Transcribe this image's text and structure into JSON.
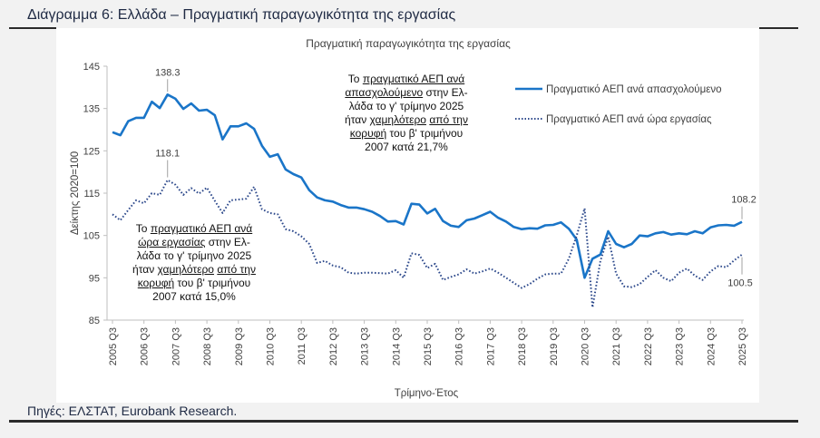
{
  "figure_title": "Διάγραμμα 6: Ελλάδα – Πραγματική παραγωγικότητα της εργασίας",
  "source_note": "Πηγές: ΕΛΣΤΑΤ, Eurobank Research.",
  "annotations": {
    "employee": [
      "Το ",
      "πραγματικό ΑΕΠ ανά",
      " ",
      "απασχολούμενο",
      " στην Ελ-",
      "λάδα το γ' τρίμηνο 2025",
      "ήταν ",
      "χαμηλότερο",
      " ",
      "από την",
      " ",
      "κορυφή",
      " του β' τριμήνου",
      "2007 κατά 21,7%"
    ],
    "hour": [
      "Το ",
      "πραγματικό ΑΕΠ ανά",
      " ",
      "ώρα εργασίας",
      " στην Ελ-",
      "λάδα το γ' τρίμηνο 2025",
      "ήταν ",
      "χαμηλότερο",
      " ",
      "από την",
      " ",
      "κορυφή",
      " του β' τριμήνου",
      "2007 κατά 15,0%"
    ]
  },
  "colors": {
    "employee": "#1a75c8",
    "hour": "#2e4a8c",
    "axis": "#bfbfbf",
    "text": "#404040"
  },
  "chart_data": {
    "type": "line",
    "title": "Πραγματική παραγωγικότητα της εργασίας",
    "xlabel": "Τρίμηνο-Έτος",
    "ylabel": "Δείκτης 2020=100",
    "ylim": [
      85,
      145
    ],
    "yticks": [
      85,
      95,
      105,
      115,
      125,
      135,
      145
    ],
    "xtick_labels": [
      "2005 Q3",
      "2006 Q3",
      "2007 Q3",
      "2008 Q3",
      "2009 Q3",
      "2010 Q3",
      "2011 Q3",
      "2012 Q3",
      "2013 Q3",
      "2014 Q3",
      "2015 Q3",
      "2016 Q3",
      "2017 Q3",
      "2018 Q3",
      "2019 Q3",
      "2020 Q3",
      "2021 Q3",
      "2022 Q3",
      "2023 Q3",
      "2024 Q3",
      "2025 Q3"
    ],
    "legend_position": "top-right",
    "series": [
      {
        "name": "Πραγματικό ΑΕΠ ανά απασχολούμενο",
        "style": "solid",
        "values": [
          129.4,
          128.7,
          132.0,
          132.8,
          132.8,
          136.6,
          135.1,
          138.3,
          137.3,
          134.9,
          136.2,
          134.5,
          134.7,
          133.4,
          127.7,
          130.8,
          130.8,
          131.5,
          130.2,
          126.2,
          123.6,
          124.2,
          120.6,
          119.5,
          118.7,
          115.7,
          114.0,
          113.3,
          113.0,
          112.2,
          111.6,
          111.6,
          111.2,
          110.6,
          109.6,
          108.3,
          108.4,
          107.6,
          112.5,
          112.3,
          110.2,
          111.3,
          108.4,
          107.3,
          107.0,
          108.6,
          109.0,
          109.8,
          110.6,
          109.2,
          108.3,
          107.0,
          106.5,
          106.7,
          106.6,
          107.4,
          107.5,
          108.1,
          106.6,
          104.0,
          95.0,
          99.5,
          100.5,
          106.0,
          103.0,
          102.2,
          103.0,
          105.0,
          104.8,
          105.5,
          105.8,
          105.2,
          105.5,
          105.3,
          106.0,
          105.5,
          106.9,
          107.4,
          107.5,
          107.3,
          108.2
        ],
        "peak_label": "138.3",
        "last_label": "108.2"
      },
      {
        "name": "Πραγματικό ΑΕΠ ανά ώρα εργασίας",
        "style": "dotted",
        "values": [
          110.0,
          108.6,
          111.0,
          113.3,
          112.6,
          115.0,
          114.6,
          118.1,
          117.0,
          114.6,
          116.2,
          114.9,
          116.3,
          113.2,
          110.3,
          113.3,
          113.5,
          113.7,
          116.5,
          111.2,
          110.3,
          110.0,
          106.5,
          106.0,
          104.8,
          103.0,
          98.5,
          99.0,
          97.9,
          97.5,
          96.2,
          96.0,
          96.2,
          96.2,
          96.1,
          96.0,
          96.8,
          95.0,
          100.8,
          100.4,
          97.3,
          98.3,
          94.5,
          95.2,
          95.8,
          97.0,
          96.0,
          96.5,
          97.2,
          96.2,
          95.0,
          93.8,
          92.6,
          93.5,
          94.8,
          95.8,
          96.0,
          96.0,
          99.5,
          105.0,
          111.4,
          88.0,
          99.0,
          104.7,
          96.0,
          93.0,
          92.8,
          93.5,
          95.2,
          96.8,
          95.0,
          94.2,
          96.2,
          97.2,
          95.5,
          94.5,
          96.5,
          97.8,
          97.5,
          99.1,
          100.5
        ],
        "peak_label": "118.1",
        "last_label": "100.5"
      }
    ]
  }
}
